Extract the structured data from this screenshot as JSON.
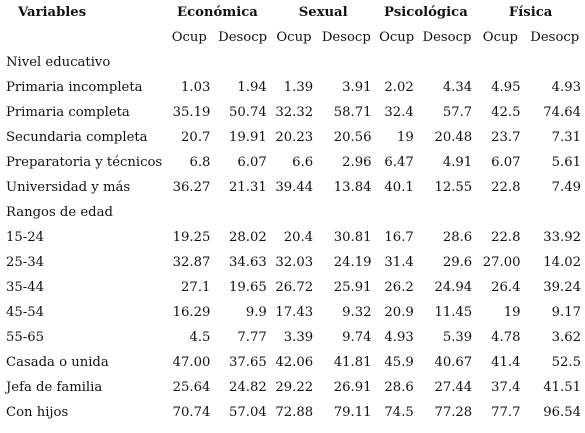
{
  "header": {
    "variables_label": "Variables",
    "groups": [
      "Económica",
      "Sexual",
      "Psicológica",
      "Física"
    ],
    "subcolumns": [
      "Ocup",
      "Desocp",
      "Ocup",
      "Desocp",
      "Ocup",
      "Desocp",
      "Ocup",
      "Desocp"
    ]
  },
  "sections": [
    {
      "title": "Nivel educativo",
      "rows": [
        {
          "label": "Primaria incompleta",
          "values": [
            "1.03",
            "1.94",
            "1.39",
            "3.91",
            "2.02",
            "4.34",
            "4.95",
            "4.93"
          ]
        },
        {
          "label": "Primaria completa",
          "values": [
            "35.19",
            "50.74",
            "32.32",
            "58.71",
            "32.4",
            "57.7",
            "42.5",
            "74.64"
          ]
        },
        {
          "label": "Secundaria completa",
          "values": [
            "20.7",
            "19.91",
            "20.23",
            "20.56",
            "19",
            "20.48",
            "23.7",
            "7.31"
          ]
        },
        {
          "label": "Preparatoria y técnicos",
          "values": [
            "6.8",
            "6.07",
            "6.6",
            "2.96",
            "6.47",
            "4.91",
            "6.07",
            "5.61"
          ]
        },
        {
          "label": "Universidad y más",
          "values": [
            "36.27",
            "21.31",
            "39.44",
            "13.84",
            "40.1",
            "12.55",
            "22.8",
            "7.49"
          ]
        }
      ]
    },
    {
      "title": "Rangos de edad",
      "rows": [
        {
          "label": "15-24",
          "values": [
            "19.25",
            "28.02",
            "20.4",
            "30.81",
            "16.7",
            "28.6",
            "22.8",
            "33.92"
          ]
        },
        {
          "label": "25-34",
          "values": [
            "32.87",
            "34.63",
            "32.03",
            "24.19",
            "31.4",
            "29.6",
            "27.00",
            "14.02"
          ]
        },
        {
          "label": "35-44",
          "values": [
            "27.1",
            "19.65",
            "26.72",
            "25.91",
            "26.2",
            "24.94",
            "26.4",
            "39.24"
          ]
        },
        {
          "label": "45-54",
          "values": [
            "16.29",
            "9.9",
            "17.43",
            "9.32",
            "20.9",
            "11.45",
            "19",
            "9.17"
          ]
        },
        {
          "label": "55-65",
          "values": [
            "4.5",
            "7.77",
            "3.39",
            "9.74",
            "4.93",
            "5.39",
            "4.78",
            "3.62"
          ]
        }
      ]
    },
    {
      "title": "",
      "rows": [
        {
          "label": "Casada o unida",
          "values": [
            "47.00",
            "37.65",
            "42.06",
            "41.81",
            "45.9",
            "40.67",
            "41.4",
            "52.5"
          ]
        },
        {
          "label": "Jefa de familia",
          "values": [
            "25.64",
            "24.82",
            "29.22",
            "26.91",
            "28.6",
            "27.44",
            "37.4",
            "41.51"
          ]
        },
        {
          "label": "Con hijos",
          "values": [
            "70.74",
            "57.04",
            "72.88",
            "79.11",
            "74.5",
            "77.28",
            "77.7",
            "96.54"
          ]
        }
      ]
    }
  ]
}
